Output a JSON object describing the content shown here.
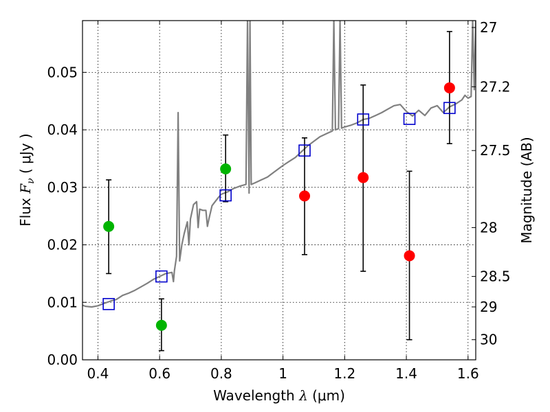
{
  "chart_data": {
    "type": "scatter",
    "xlabel": "Wavelength  λ (μm)",
    "xlabel_parts": {
      "prefix": "Wavelength  ",
      "symbol": "λ",
      "units": " (μm)"
    },
    "ylabel": "Flux  F_ν  ( μJy )",
    "ylabel_parts": {
      "prefix": "Flux  ",
      "symbol": "F",
      "subscript": "ν",
      "units": "  ( μJy )"
    },
    "y2label": "Magnitude (AB)",
    "xlim": [
      0.35,
      1.625
    ],
    "ylim": [
      0.0,
      0.059
    ],
    "grid": true,
    "x_ticks": [
      {
        "value": 0.4,
        "label": "0.4"
      },
      {
        "value": 0.6,
        "label": "0.6"
      },
      {
        "value": 0.8,
        "label": "0.8"
      },
      {
        "value": 1.0,
        "label": "1"
      },
      {
        "value": 1.2,
        "label": "1.2"
      },
      {
        "value": 1.4,
        "label": "1.4"
      },
      {
        "value": 1.6,
        "label": "1.6"
      }
    ],
    "y_ticks": [
      {
        "value": 0.0,
        "label": "0.00"
      },
      {
        "value": 0.01,
        "label": "0.01"
      },
      {
        "value": 0.02,
        "label": "0.02"
      },
      {
        "value": 0.03,
        "label": "0.03"
      },
      {
        "value": 0.04,
        "label": "0.04"
      },
      {
        "value": 0.05,
        "label": "0.05"
      }
    ],
    "y2_ticks": [
      {
        "flux": 0.0578,
        "label": "27"
      },
      {
        "flux": 0.0475,
        "label": "27.2"
      },
      {
        "flux": 0.0364,
        "label": "27.5"
      },
      {
        "flux": 0.023,
        "label": "28"
      },
      {
        "flux": 0.0145,
        "label": "28.5"
      },
      {
        "flux": 0.0092,
        "label": "29"
      },
      {
        "flux": 0.0035,
        "label": "30"
      }
    ],
    "series": [
      {
        "name": "template-spectrum",
        "kind": "line",
        "color": "#808080",
        "points": [
          [
            0.35,
            0.0095
          ],
          [
            0.36,
            0.0093
          ],
          [
            0.38,
            0.0092
          ],
          [
            0.4,
            0.0094
          ],
          [
            0.42,
            0.0098
          ],
          [
            0.44,
            0.0102
          ],
          [
            0.46,
            0.0105
          ],
          [
            0.48,
            0.0112
          ],
          [
            0.5,
            0.0116
          ],
          [
            0.52,
            0.0121
          ],
          [
            0.54,
            0.0127
          ],
          [
            0.56,
            0.0133
          ],
          [
            0.58,
            0.014
          ],
          [
            0.6,
            0.0145
          ],
          [
            0.62,
            0.015
          ],
          [
            0.64,
            0.0152
          ],
          [
            0.645,
            0.0136
          ],
          [
            0.648,
            0.0155
          ],
          [
            0.655,
            0.018
          ],
          [
            0.66,
            0.043
          ],
          [
            0.665,
            0.0172
          ],
          [
            0.672,
            0.02
          ],
          [
            0.68,
            0.022
          ],
          [
            0.69,
            0.024
          ],
          [
            0.695,
            0.02
          ],
          [
            0.7,
            0.0245
          ],
          [
            0.71,
            0.027
          ],
          [
            0.72,
            0.0275
          ],
          [
            0.725,
            0.023
          ],
          [
            0.73,
            0.0262
          ],
          [
            0.74,
            0.026
          ],
          [
            0.75,
            0.026
          ],
          [
            0.755,
            0.0232
          ],
          [
            0.76,
            0.0245
          ],
          [
            0.77,
            0.0268
          ],
          [
            0.78,
            0.0275
          ],
          [
            0.79,
            0.0282
          ],
          [
            0.8,
            0.0288
          ],
          [
            0.82,
            0.0292
          ],
          [
            0.84,
            0.0298
          ],
          [
            0.86,
            0.0302
          ],
          [
            0.88,
            0.0305
          ],
          [
            0.885,
            0.059
          ],
          [
            0.89,
            0.029
          ],
          [
            0.893,
            0.059
          ],
          [
            0.897,
            0.0305
          ],
          [
            0.91,
            0.0308
          ],
          [
            0.93,
            0.0313
          ],
          [
            0.95,
            0.0318
          ],
          [
            0.97,
            0.0326
          ],
          [
            1.0,
            0.0338
          ],
          [
            1.02,
            0.0345
          ],
          [
            1.04,
            0.0352
          ],
          [
            1.06,
            0.0362
          ],
          [
            1.08,
            0.0372
          ],
          [
            1.1,
            0.038
          ],
          [
            1.12,
            0.0388
          ],
          [
            1.14,
            0.0393
          ],
          [
            1.16,
            0.0398
          ],
          [
            1.165,
            0.059
          ],
          [
            1.17,
            0.04
          ],
          [
            1.18,
            0.0402
          ],
          [
            1.185,
            0.059
          ],
          [
            1.19,
            0.0403
          ],
          [
            1.2,
            0.0405
          ],
          [
            1.22,
            0.0408
          ],
          [
            1.24,
            0.0412
          ],
          [
            1.26,
            0.0418
          ],
          [
            1.28,
            0.042
          ],
          [
            1.3,
            0.0425
          ],
          [
            1.32,
            0.043
          ],
          [
            1.34,
            0.0436
          ],
          [
            1.36,
            0.0442
          ],
          [
            1.38,
            0.0444
          ],
          [
            1.4,
            0.0432
          ],
          [
            1.42,
            0.0424
          ],
          [
            1.44,
            0.0434
          ],
          [
            1.46,
            0.0425
          ],
          [
            1.48,
            0.0438
          ],
          [
            1.5,
            0.0442
          ],
          [
            1.52,
            0.043
          ],
          [
            1.54,
            0.044
          ],
          [
            1.56,
            0.0445
          ],
          [
            1.58,
            0.0452
          ],
          [
            1.59,
            0.046
          ],
          [
            1.6,
            0.0455
          ],
          [
            1.61,
            0.0458
          ],
          [
            1.615,
            0.059
          ],
          [
            1.62,
            0.047
          ],
          [
            1.625,
            0.059
          ]
        ]
      },
      {
        "name": "model-photometry",
        "kind": "open-square",
        "color": "#0000cc",
        "points": [
          [
            0.435,
            0.0097
          ],
          [
            0.606,
            0.0145
          ],
          [
            0.814,
            0.0286
          ],
          [
            1.07,
            0.0364
          ],
          [
            1.26,
            0.0418
          ],
          [
            1.41,
            0.0419
          ],
          [
            1.54,
            0.0438
          ]
        ]
      },
      {
        "name": "optical-detections",
        "kind": "filled-circle",
        "color": "#00b400",
        "points": [
          {
            "x": 0.435,
            "y": 0.0232,
            "err": [
              0.015,
              0.0313
            ]
          },
          {
            "x": 0.606,
            "y": 0.006,
            "err": [
              0.0016,
              0.0106
            ]
          },
          {
            "x": 0.814,
            "y": 0.0332,
            "err": [
              0.0275,
              0.0391
            ]
          }
        ]
      },
      {
        "name": "nir-detections",
        "kind": "filled-circle",
        "color": "#ff0000",
        "points": [
          {
            "x": 1.07,
            "y": 0.0285,
            "err": [
              0.0183,
              0.0386
            ]
          },
          {
            "x": 1.26,
            "y": 0.0317,
            "err": [
              0.0154,
              0.0478
            ]
          },
          {
            "x": 1.41,
            "y": 0.0181,
            "err": [
              0.0035,
              0.0328
            ]
          },
          {
            "x": 1.54,
            "y": 0.0473,
            "err": [
              0.0376,
              0.0571
            ]
          }
        ]
      }
    ]
  }
}
